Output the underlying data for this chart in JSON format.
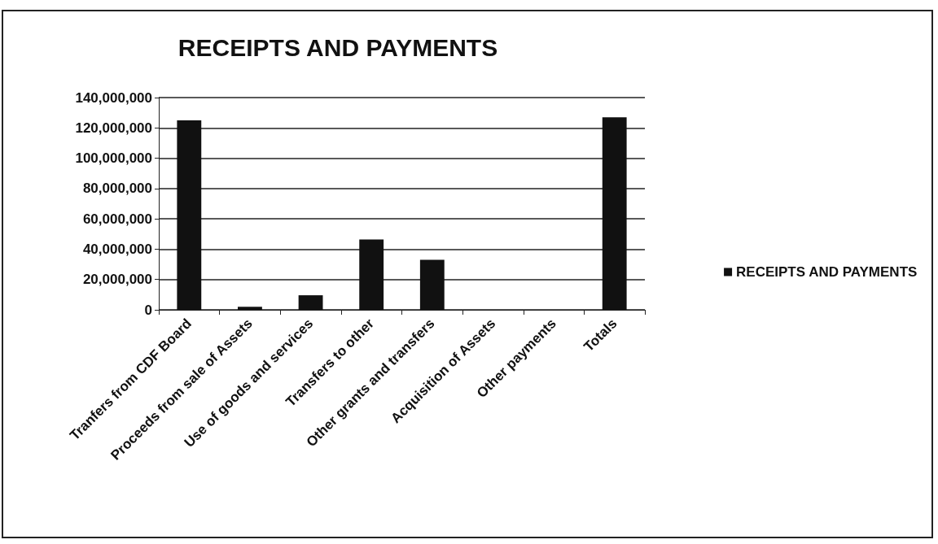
{
  "chart_data": {
    "type": "bar",
    "title": "RECEIPTS AND PAYMENTS",
    "categories": [
      "Tranfers from CDF Board",
      "Proceeds from sale of Assets",
      "Use of goods and services",
      "Transfers to other",
      "Other grants and transfers",
      "Acquisition of Assets",
      "Other payments",
      "Totals"
    ],
    "series": [
      {
        "name": "RECEIPTS AND PAYMENTS",
        "color": "#111111",
        "values": [
          125000000,
          2000000,
          9600000,
          46400000,
          33000000,
          0,
          0,
          127000000
        ]
      }
    ],
    "ylim": [
      0,
      140000000
    ],
    "yticks": [
      {
        "value": 0,
        "label": "0"
      },
      {
        "value": 20000000,
        "label": "20,000,000"
      },
      {
        "value": 40000000,
        "label": "40,000,000"
      },
      {
        "value": 60000000,
        "label": "60,000,000"
      },
      {
        "value": 80000000,
        "label": "80,000,000"
      },
      {
        "value": 100000000,
        "label": "100,000,000"
      },
      {
        "value": 120000000,
        "label": "120,000,000"
      },
      {
        "value": 140000000,
        "label": "140,000,000"
      }
    ],
    "grid": "y",
    "legend": "right"
  }
}
